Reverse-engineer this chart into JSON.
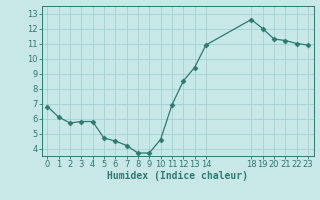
{
  "x": [
    0,
    1,
    2,
    3,
    4,
    5,
    6,
    7,
    8,
    9,
    10,
    11,
    12,
    13,
    14,
    18,
    19,
    20,
    21,
    22,
    23
  ],
  "y": [
    6.8,
    6.1,
    5.7,
    5.8,
    5.8,
    4.7,
    4.5,
    4.2,
    3.7,
    3.7,
    4.6,
    6.9,
    8.5,
    9.4,
    10.9,
    12.6,
    12.0,
    11.3,
    11.2,
    11.0,
    10.9
  ],
  "line_color": "#2d7a6e",
  "marker": "D",
  "marker_size": 2.5,
  "bg_color": "#c8e8e8",
  "grid_color": "#9ecece",
  "xlabel": "Humidex (Indice chaleur)",
  "xlim": [
    -0.5,
    23.5
  ],
  "ylim": [
    3.5,
    13.5
  ],
  "yticks": [
    4,
    5,
    6,
    7,
    8,
    9,
    10,
    11,
    12,
    13
  ],
  "axis_color": "#2d7a6e",
  "font_color": "#2d7a6e",
  "xlabel_fontsize": 7,
  "tick_fontsize": 6
}
